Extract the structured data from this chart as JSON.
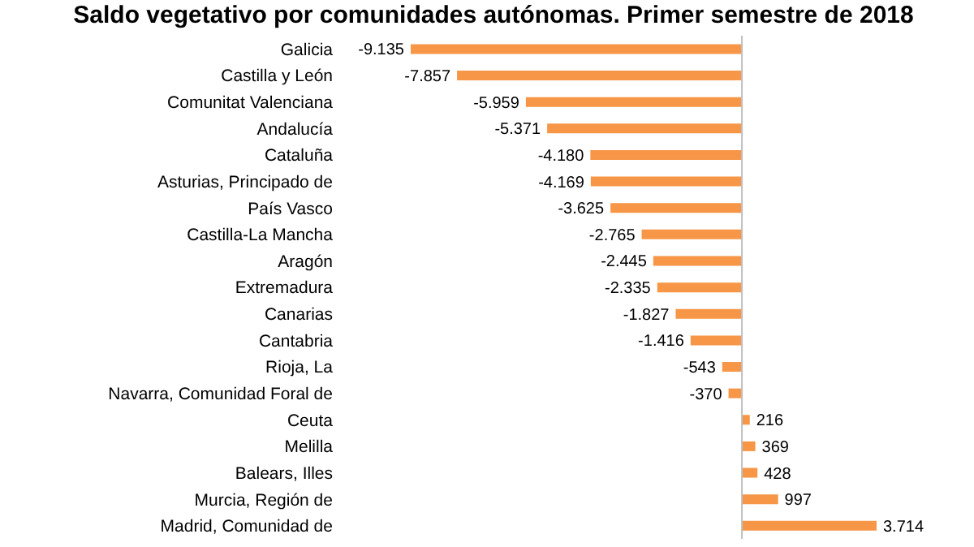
{
  "chart_data": {
    "type": "bar",
    "orientation": "horizontal",
    "title": "Saldo vegetativo por comunidades autónomas. Primer semestre de 2018",
    "categories": [
      "Galicia",
      "Castilla y León",
      "Comunitat Valenciana",
      "Andalucía",
      "Cataluña",
      "Asturias, Principado de",
      "País Vasco",
      "Castilla-La Mancha",
      "Aragón",
      "Extremadura",
      "Canarias",
      "Cantabria",
      "Rioja, La",
      "Navarra, Comunidad Foral de",
      "Ceuta",
      "Melilla",
      "Balears, Illes",
      "Murcia, Región de",
      "Madrid, Comunidad de"
    ],
    "values": [
      -9135,
      -7857,
      -5959,
      -5371,
      -4180,
      -4169,
      -3625,
      -2765,
      -2445,
      -2335,
      -1827,
      -1416,
      -543,
      -370,
      216,
      369,
      428,
      997,
      3714
    ],
    "value_labels": [
      "-9.135",
      "-7.857",
      "-5.959",
      "-5.371",
      "-4.180",
      "-4.169",
      "-3.625",
      "-2.765",
      "-2.445",
      "-2.335",
      "-1.827",
      "-1.416",
      "-543",
      "-370",
      "216",
      "369",
      "428",
      "997",
      "3.714"
    ],
    "color": "#f79646"
  }
}
